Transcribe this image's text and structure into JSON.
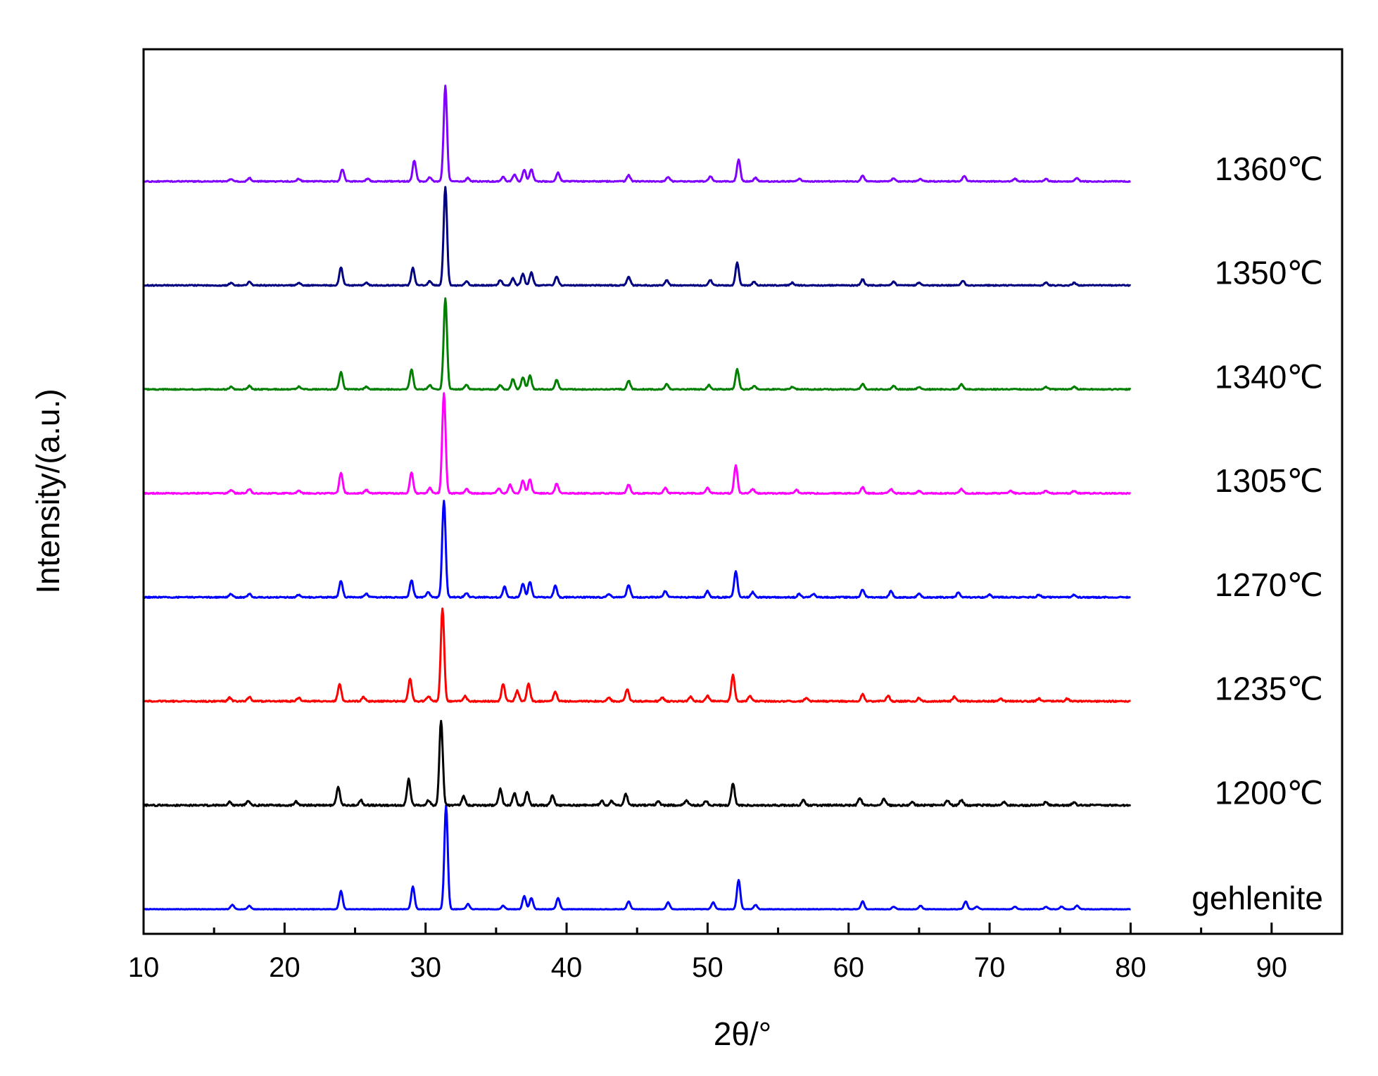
{
  "chart_data": {
    "type": "line",
    "xlabel": "2θ/°",
    "ylabel": "Intensity/(a.u.)",
    "xlim": [
      10,
      95
    ],
    "x_ticks": [
      "10",
      "20",
      "30",
      "40",
      "50",
      "60",
      "70",
      "80",
      "90"
    ],
    "y_ticks_shown": false,
    "grid": false,
    "legend": "inline labels at right end of each trace",
    "x_range_data": [
      10,
      80
    ],
    "series": [
      {
        "name": "gehlenite",
        "color": "#0000ff",
        "baseline": 0,
        "noise": 0.03,
        "peaks": [
          [
            16.3,
            0.5
          ],
          [
            17.5,
            0.4
          ],
          [
            24.0,
            2.1
          ],
          [
            29.1,
            2.6
          ],
          [
            31.45,
            12.0
          ],
          [
            33.0,
            0.6
          ],
          [
            35.5,
            0.4
          ],
          [
            37.0,
            1.5
          ],
          [
            37.5,
            1.3
          ],
          [
            39.4,
            1.3
          ],
          [
            44.4,
            0.9
          ],
          [
            47.2,
            0.8
          ],
          [
            50.4,
            0.8
          ],
          [
            52.2,
            3.4
          ],
          [
            53.4,
            0.5
          ],
          [
            61.0,
            0.9
          ],
          [
            63.2,
            0.3
          ],
          [
            65.1,
            0.4
          ],
          [
            68.3,
            0.9
          ],
          [
            69.1,
            0.3
          ],
          [
            71.8,
            0.3
          ],
          [
            74.0,
            0.3
          ],
          [
            75.1,
            0.3
          ],
          [
            76.2,
            0.4
          ]
        ]
      },
      {
        "name": "1200℃",
        "color": "#000000",
        "baseline": 12,
        "noise": 0.1,
        "peaks": [
          [
            16.1,
            0.4
          ],
          [
            17.4,
            0.5
          ],
          [
            20.8,
            0.4
          ],
          [
            23.8,
            2.1
          ],
          [
            25.4,
            0.6
          ],
          [
            28.8,
            3.0
          ],
          [
            30.2,
            0.6
          ],
          [
            31.1,
            9.8
          ],
          [
            32.7,
            1.0
          ],
          [
            35.3,
            1.9
          ],
          [
            36.3,
            1.4
          ],
          [
            37.2,
            1.6
          ],
          [
            39.0,
            1.1
          ],
          [
            42.5,
            0.5
          ],
          [
            43.2,
            0.5
          ],
          [
            44.2,
            1.3
          ],
          [
            46.5,
            0.5
          ],
          [
            48.5,
            0.5
          ],
          [
            49.9,
            0.5
          ],
          [
            51.8,
            2.5
          ],
          [
            56.8,
            0.6
          ],
          [
            60.8,
            0.8
          ],
          [
            62.5,
            0.7
          ],
          [
            64.5,
            0.4
          ],
          [
            67.0,
            0.6
          ],
          [
            68.0,
            0.6
          ],
          [
            71.0,
            0.4
          ],
          [
            74.0,
            0.4
          ],
          [
            76.0,
            0.4
          ]
        ]
      },
      {
        "name": "1235℃",
        "color": "#ff0000",
        "baseline": 24,
        "noise": 0.08,
        "peaks": [
          [
            16.1,
            0.4
          ],
          [
            17.5,
            0.5
          ],
          [
            21.0,
            0.4
          ],
          [
            23.9,
            2.0
          ],
          [
            25.6,
            0.5
          ],
          [
            28.9,
            2.6
          ],
          [
            30.2,
            0.6
          ],
          [
            31.2,
            10.7
          ],
          [
            32.8,
            0.6
          ],
          [
            35.5,
            2.0
          ],
          [
            36.5,
            1.2
          ],
          [
            37.3,
            2.0
          ],
          [
            39.2,
            1.1
          ],
          [
            43.0,
            0.4
          ],
          [
            44.3,
            1.4
          ],
          [
            46.8,
            0.4
          ],
          [
            48.8,
            0.5
          ],
          [
            50.0,
            0.6
          ],
          [
            51.8,
            3.0
          ],
          [
            53.0,
            0.6
          ],
          [
            57.0,
            0.4
          ],
          [
            61.0,
            0.8
          ],
          [
            62.8,
            0.6
          ],
          [
            65.0,
            0.4
          ],
          [
            67.5,
            0.5
          ],
          [
            70.8,
            0.3
          ],
          [
            73.5,
            0.3
          ],
          [
            75.5,
            0.3
          ]
        ]
      },
      {
        "name": "1270℃",
        "color": "#0000ff",
        "baseline": 36,
        "noise": 0.07,
        "peaks": [
          [
            16.2,
            0.4
          ],
          [
            17.5,
            0.4
          ],
          [
            21.0,
            0.3
          ],
          [
            24.0,
            1.9
          ],
          [
            25.8,
            0.4
          ],
          [
            29.0,
            2.0
          ],
          [
            30.2,
            0.6
          ],
          [
            31.3,
            11.2
          ],
          [
            32.9,
            0.5
          ],
          [
            35.6,
            1.2
          ],
          [
            36.9,
            1.6
          ],
          [
            37.4,
            1.8
          ],
          [
            39.2,
            1.3
          ],
          [
            43.0,
            0.4
          ],
          [
            44.4,
            1.4
          ],
          [
            47.0,
            0.7
          ],
          [
            50.0,
            0.7
          ],
          [
            52.0,
            3.0
          ],
          [
            53.2,
            0.6
          ],
          [
            56.5,
            0.4
          ],
          [
            57.5,
            0.4
          ],
          [
            61.0,
            0.9
          ],
          [
            63.0,
            0.7
          ],
          [
            65.0,
            0.4
          ],
          [
            67.8,
            0.6
          ],
          [
            70.0,
            0.3
          ],
          [
            73.5,
            0.3
          ],
          [
            76.0,
            0.3
          ]
        ]
      },
      {
        "name": "1305℃",
        "color": "#ff00ff",
        "baseline": 48,
        "noise": 0.07,
        "peaks": [
          [
            16.2,
            0.4
          ],
          [
            17.5,
            0.5
          ],
          [
            21.0,
            0.3
          ],
          [
            24.0,
            2.4
          ],
          [
            25.8,
            0.4
          ],
          [
            29.0,
            2.4
          ],
          [
            30.3,
            0.6
          ],
          [
            31.3,
            11.5
          ],
          [
            32.9,
            0.5
          ],
          [
            35.2,
            0.6
          ],
          [
            36.0,
            1.0
          ],
          [
            36.9,
            1.5
          ],
          [
            37.4,
            1.6
          ],
          [
            39.3,
            1.1
          ],
          [
            44.4,
            1.0
          ],
          [
            47.0,
            0.6
          ],
          [
            50.0,
            0.6
          ],
          [
            52.0,
            3.2
          ],
          [
            53.2,
            0.5
          ],
          [
            56.3,
            0.4
          ],
          [
            61.0,
            0.7
          ],
          [
            63.0,
            0.5
          ],
          [
            65.0,
            0.3
          ],
          [
            68.0,
            0.5
          ],
          [
            71.5,
            0.3
          ],
          [
            74.0,
            0.3
          ],
          [
            76.0,
            0.3
          ]
        ]
      },
      {
        "name": "1340℃",
        "color": "#007f00",
        "baseline": 60,
        "noise": 0.06,
        "peaks": [
          [
            16.2,
            0.3
          ],
          [
            17.5,
            0.4
          ],
          [
            21.0,
            0.3
          ],
          [
            24.0,
            2.0
          ],
          [
            25.8,
            0.3
          ],
          [
            29.0,
            2.3
          ],
          [
            30.3,
            0.5
          ],
          [
            31.4,
            10.5
          ],
          [
            32.9,
            0.5
          ],
          [
            35.3,
            0.5
          ],
          [
            36.2,
            1.2
          ],
          [
            36.9,
            1.4
          ],
          [
            37.4,
            1.6
          ],
          [
            39.3,
            1.1
          ],
          [
            44.4,
            1.0
          ],
          [
            47.1,
            0.6
          ],
          [
            50.1,
            0.5
          ],
          [
            52.1,
            2.3
          ],
          [
            53.3,
            0.4
          ],
          [
            56.0,
            0.3
          ],
          [
            61.0,
            0.6
          ],
          [
            63.2,
            0.4
          ],
          [
            65.0,
            0.3
          ],
          [
            68.0,
            0.6
          ],
          [
            74.0,
            0.3
          ],
          [
            76.0,
            0.3
          ]
        ]
      },
      {
        "name": "1350℃",
        "color": "#000080",
        "baseline": 72,
        "noise": 0.06,
        "peaks": [
          [
            16.2,
            0.3
          ],
          [
            17.5,
            0.4
          ],
          [
            21.0,
            0.3
          ],
          [
            24.0,
            2.1
          ],
          [
            25.8,
            0.3
          ],
          [
            29.1,
            2.0
          ],
          [
            30.3,
            0.5
          ],
          [
            31.4,
            11.4
          ],
          [
            32.9,
            0.5
          ],
          [
            35.3,
            0.6
          ],
          [
            36.2,
            0.8
          ],
          [
            36.9,
            1.3
          ],
          [
            37.5,
            1.5
          ],
          [
            39.3,
            1.0
          ],
          [
            44.4,
            1.0
          ],
          [
            47.1,
            0.6
          ],
          [
            50.2,
            0.6
          ],
          [
            52.1,
            2.6
          ],
          [
            53.3,
            0.4
          ],
          [
            56.0,
            0.3
          ],
          [
            61.0,
            0.7
          ],
          [
            63.2,
            0.4
          ],
          [
            65.0,
            0.3
          ],
          [
            68.1,
            0.5
          ],
          [
            74.0,
            0.3
          ],
          [
            76.0,
            0.3
          ]
        ]
      },
      {
        "name": "1360℃",
        "color": "#8000ff",
        "baseline": 84,
        "noise": 0.06,
        "peaks": [
          [
            16.2,
            0.3
          ],
          [
            17.5,
            0.4
          ],
          [
            21.0,
            0.3
          ],
          [
            24.1,
            1.4
          ],
          [
            25.9,
            0.3
          ],
          [
            29.2,
            2.4
          ],
          [
            30.3,
            0.5
          ],
          [
            31.4,
            11.0
          ],
          [
            33.0,
            0.4
          ],
          [
            35.5,
            0.5
          ],
          [
            36.3,
            0.8
          ],
          [
            37.0,
            1.3
          ],
          [
            37.5,
            1.4
          ],
          [
            39.4,
            1.0
          ],
          [
            44.4,
            0.7
          ],
          [
            47.2,
            0.5
          ],
          [
            50.2,
            0.6
          ],
          [
            52.2,
            2.5
          ],
          [
            53.4,
            0.4
          ],
          [
            56.5,
            0.3
          ],
          [
            61.0,
            0.7
          ],
          [
            63.2,
            0.4
          ],
          [
            65.1,
            0.3
          ],
          [
            68.2,
            0.6
          ],
          [
            71.8,
            0.3
          ],
          [
            74.0,
            0.3
          ],
          [
            76.2,
            0.4
          ]
        ]
      }
    ]
  }
}
